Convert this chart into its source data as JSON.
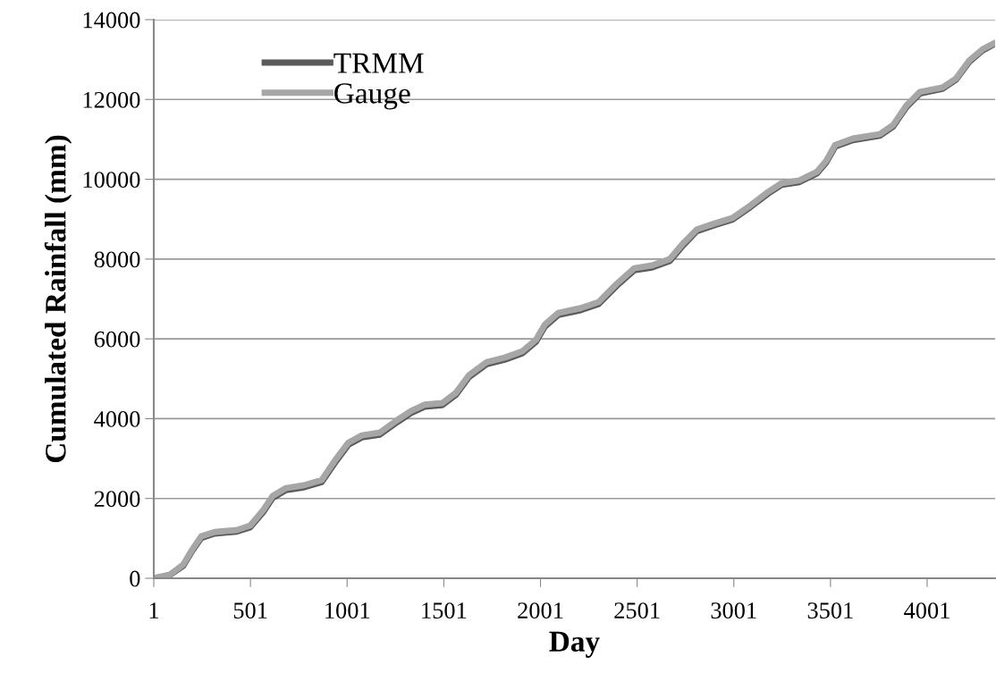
{
  "chart_data": {
    "type": "line",
    "xlabel": "Day",
    "ylabel": "Cumulated Rainfall (mm)",
    "x": [
      1,
      84,
      153,
      200,
      246,
      315,
      431,
      500,
      569,
      615,
      685,
      777,
      869,
      939,
      1008,
      1077,
      1170,
      1262,
      1331,
      1401,
      1493,
      1562,
      1631,
      1724,
      1816,
      1908,
      1978,
      2024,
      2093,
      2209,
      2301,
      2393,
      2486,
      2578,
      2670,
      2740,
      2809,
      2901,
      2994,
      3086,
      3178,
      3248,
      3340,
      3432,
      3479,
      3525,
      3617,
      3756,
      3825,
      3894,
      3964,
      4080,
      4149,
      4218,
      4288,
      4352
    ],
    "series": [
      {
        "name": "TRMM",
        "color": "#5a5a5a",
        "values": [
          0,
          80,
          310,
          690,
          1010,
          1120,
          1170,
          1280,
          1670,
          2010,
          2210,
          2280,
          2410,
          2900,
          3350,
          3530,
          3600,
          3920,
          4140,
          4300,
          4340,
          4590,
          5040,
          5370,
          5480,
          5640,
          5930,
          6310,
          6600,
          6720,
          6870,
          7320,
          7720,
          7790,
          7950,
          8350,
          8700,
          8850,
          8990,
          9300,
          9640,
          9860,
          9930,
          10150,
          10420,
          10820,
          10980,
          11090,
          11320,
          11810,
          12150,
          12270,
          12490,
          12940,
          13230,
          13400
        ]
      },
      {
        "name": "Gauge",
        "color": "#a6a6a6",
        "values": [
          0,
          90,
          340,
          720,
          1050,
          1160,
          1210,
          1320,
          1720,
          2060,
          2260,
          2330,
          2460,
          2960,
          3400,
          3580,
          3650,
          3970,
          4190,
          4350,
          4390,
          4640,
          5090,
          5420,
          5530,
          5690,
          5980,
          6360,
          6650,
          6770,
          6920,
          7370,
          7770,
          7840,
          8000,
          8400,
          8740,
          8890,
          9030,
          9340,
          9680,
          9900,
          9970,
          10190,
          10460,
          10860,
          11020,
          11130,
          11360,
          11850,
          12190,
          12300,
          12520,
          12970,
          13260,
          13420
        ]
      }
    ],
    "xlim": [
      1,
      4352
    ],
    "xticks": [
      1,
      501,
      1001,
      1501,
      2001,
      2501,
      3001,
      3501,
      4001
    ],
    "ylim": [
      0,
      14000
    ],
    "yticks": [
      0,
      2000,
      4000,
      6000,
      8000,
      10000,
      12000,
      14000
    ],
    "grid": "y",
    "legend": "top left",
    "marker": "none",
    "line_style": "solid"
  }
}
